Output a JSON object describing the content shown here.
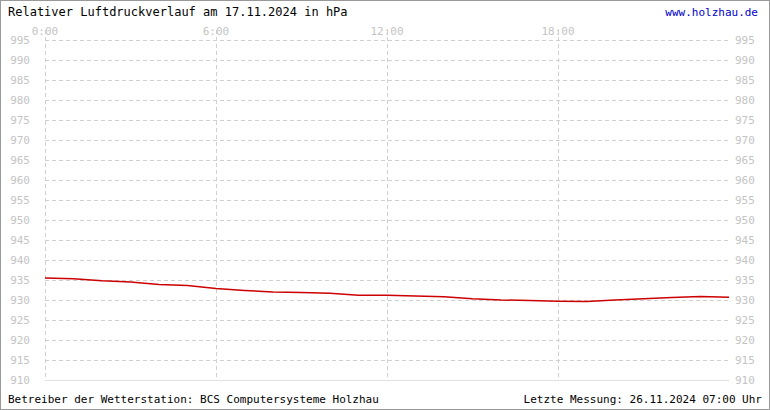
{
  "chart_data": {
    "type": "line",
    "title": "Relativer Luftdruckverlauf am 17.11.2024 in hPa",
    "source": "www.holzhau.de",
    "operator": "Betreiber der Wetterstation: BCS Computersysteme Holzhau",
    "last_measurement": "Letzte Messung: 26.11.2024 07:00 Uhr",
    "x": [
      0,
      1,
      2,
      3,
      4,
      5,
      6,
      7,
      8,
      9,
      10,
      11,
      12,
      13,
      14,
      15,
      16,
      17,
      18,
      19,
      20,
      21,
      22,
      23,
      24
    ],
    "values": [
      935.5,
      935.3,
      934.8,
      934.5,
      933.9,
      933.6,
      932.9,
      932.4,
      932.0,
      931.9,
      931.7,
      931.2,
      931.2,
      931.0,
      930.8,
      930.3,
      930.0,
      929.9,
      929.7,
      929.6,
      930.0,
      930.3,
      930.6,
      930.9,
      930.7
    ],
    "color": "#cc0000",
    "xlim": [
      0,
      24
    ],
    "xticks": [
      {
        "value": 0,
        "label": "0:00"
      },
      {
        "value": 6,
        "label": "6:00"
      },
      {
        "value": 12,
        "label": "12:00"
      },
      {
        "value": 18,
        "label": "18:00"
      }
    ],
    "ylim": [
      910,
      995
    ],
    "yticks": [
      910,
      915,
      920,
      925,
      930,
      935,
      940,
      945,
      950,
      955,
      960,
      965,
      970,
      975,
      980,
      985,
      990,
      995
    ],
    "grid": true
  }
}
